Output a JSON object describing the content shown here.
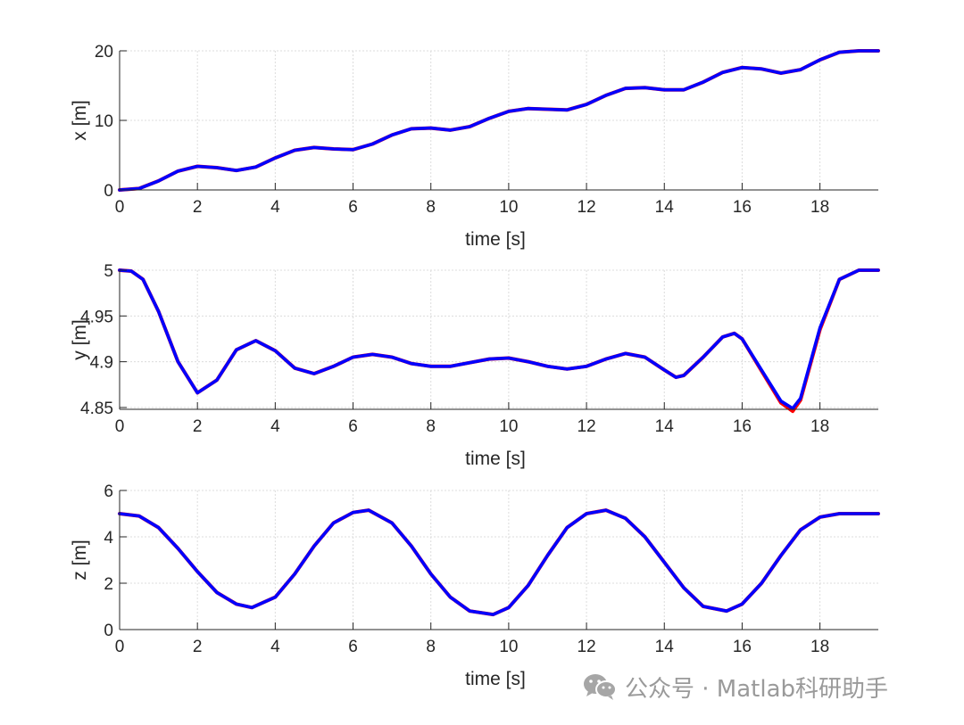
{
  "chart_data": [
    {
      "type": "line",
      "xlabel": "time [s]",
      "ylabel": "x [m]",
      "xlim": [
        0,
        19.5
      ],
      "ylim": [
        0,
        20
      ],
      "xticks": [
        0,
        2,
        4,
        6,
        8,
        10,
        12,
        14,
        16,
        18
      ],
      "yticks": [
        0,
        10,
        20
      ],
      "ytick_labels": [
        "0",
        "10",
        "20"
      ],
      "grid": true,
      "series": [
        {
          "color": "#ff0000",
          "x": [
            0,
            0.5,
            1,
            1.5,
            2,
            2.5,
            3,
            3.5,
            4,
            4.5,
            5,
            5.5,
            6,
            6.5,
            7,
            7.5,
            8,
            8.5,
            9,
            9.5,
            10,
            10.5,
            11,
            11.5,
            12,
            12.5,
            13,
            13.5,
            14,
            14.5,
            15,
            15.5,
            16,
            16.5,
            17,
            17.5,
            18,
            18.5,
            19,
            19.5
          ],
          "y": [
            0,
            0.2,
            1.3,
            2.7,
            3.4,
            3.2,
            2.8,
            3.3,
            4.6,
            5.7,
            6.1,
            5.9,
            5.8,
            6.6,
            7.9,
            8.8,
            8.9,
            8.6,
            9.1,
            10.3,
            11.3,
            11.7,
            11.6,
            11.5,
            12.3,
            13.6,
            14.6,
            14.7,
            14.4,
            14.4,
            15.5,
            16.9,
            17.6,
            17.4,
            16.8,
            17.3,
            18.7,
            19.8,
            20,
            20
          ]
        },
        {
          "color": "#0000ff",
          "x": [
            0,
            0.5,
            1,
            1.5,
            2,
            2.5,
            3,
            3.5,
            4,
            4.5,
            5,
            5.5,
            6,
            6.5,
            7,
            7.5,
            8,
            8.5,
            9,
            9.5,
            10,
            10.5,
            11,
            11.5,
            12,
            12.5,
            13,
            13.5,
            14,
            14.5,
            15,
            15.5,
            16,
            16.5,
            17,
            17.5,
            18,
            18.5,
            19,
            19.5
          ],
          "y": [
            0,
            0.2,
            1.3,
            2.7,
            3.4,
            3.2,
            2.8,
            3.3,
            4.6,
            5.7,
            6.1,
            5.9,
            5.8,
            6.6,
            7.9,
            8.8,
            8.9,
            8.6,
            9.1,
            10.3,
            11.3,
            11.7,
            11.6,
            11.5,
            12.3,
            13.6,
            14.6,
            14.7,
            14.4,
            14.4,
            15.5,
            16.9,
            17.6,
            17.4,
            16.8,
            17.3,
            18.7,
            19.8,
            20,
            20
          ]
        }
      ]
    },
    {
      "type": "line",
      "xlabel": "time [s]",
      "ylabel": "y [m]",
      "xlim": [
        0,
        19.5
      ],
      "ylim": [
        4.848,
        5
      ],
      "xticks": [
        0,
        2,
        4,
        6,
        8,
        10,
        12,
        14,
        16,
        18
      ],
      "yticks": [
        4.85,
        4.9,
        4.95,
        5
      ],
      "ytick_labels": [
        "4.85",
        "4.9",
        "4.95",
        "5"
      ],
      "grid": true,
      "series": [
        {
          "color": "#ff0000",
          "x": [
            0,
            0.3,
            0.6,
            1,
            1.5,
            2,
            2.5,
            3,
            3.5,
            4,
            4.5,
            5,
            5.5,
            6,
            6.5,
            7,
            7.5,
            8,
            8.5,
            9,
            9.5,
            10,
            10.5,
            11,
            11.5,
            12,
            12.5,
            13,
            13.5,
            14,
            14.3,
            14.5,
            15,
            15.5,
            15.8,
            16,
            16.5,
            17,
            17.3,
            17.5,
            18,
            18.5,
            19,
            19.5
          ],
          "y": [
            5,
            4.999,
            4.99,
            4.955,
            4.9,
            4.866,
            4.88,
            4.913,
            4.923,
            4.912,
            4.893,
            4.887,
            4.895,
            4.905,
            4.908,
            4.905,
            4.898,
            4.895,
            4.895,
            4.899,
            4.903,
            4.904,
            4.9,
            4.895,
            4.892,
            4.895,
            4.903,
            4.909,
            4.905,
            4.891,
            4.883,
            4.885,
            4.905,
            4.927,
            4.931,
            4.925,
            4.89,
            4.855,
            4.846,
            4.858,
            4.935,
            4.99,
            5,
            5
          ]
        },
        {
          "color": "#0000ff",
          "x": [
            0,
            0.3,
            0.6,
            1,
            1.5,
            2,
            2.5,
            3,
            3.5,
            4,
            4.5,
            5,
            5.5,
            6,
            6.5,
            7,
            7.5,
            8,
            8.5,
            9,
            9.5,
            10,
            10.5,
            11,
            11.5,
            12,
            12.5,
            13,
            13.5,
            14,
            14.3,
            14.5,
            15,
            15.5,
            15.8,
            16,
            16.5,
            17,
            17.3,
            17.5,
            18,
            18.5,
            19,
            19.5
          ],
          "y": [
            5,
            4.999,
            4.99,
            4.955,
            4.9,
            4.866,
            4.88,
            4.913,
            4.923,
            4.912,
            4.893,
            4.887,
            4.895,
            4.905,
            4.908,
            4.905,
            4.898,
            4.895,
            4.895,
            4.899,
            4.903,
            4.904,
            4.9,
            4.895,
            4.892,
            4.895,
            4.903,
            4.909,
            4.905,
            4.891,
            4.883,
            4.885,
            4.905,
            4.927,
            4.931,
            4.925,
            4.891,
            4.857,
            4.849,
            4.86,
            4.937,
            4.99,
            5,
            5
          ]
        }
      ]
    },
    {
      "type": "line",
      "xlabel": "time [s]",
      "ylabel": "z [m]",
      "xlim": [
        0,
        19.5
      ],
      "ylim": [
        0,
        6
      ],
      "xticks": [
        0,
        2,
        4,
        6,
        8,
        10,
        12,
        14,
        16,
        18
      ],
      "yticks": [
        0,
        2,
        4,
        6
      ],
      "ytick_labels": [
        "0",
        "2",
        "4",
        "6"
      ],
      "grid": true,
      "series": [
        {
          "color": "#ff0000",
          "x": [
            0,
            0.5,
            1,
            1.5,
            2,
            2.5,
            3,
            3.4,
            4,
            4.5,
            5,
            5.5,
            6,
            6.4,
            7,
            7.5,
            8,
            8.5,
            9,
            9.6,
            10,
            10.5,
            11,
            11.5,
            12,
            12.5,
            13,
            13.5,
            14,
            14.5,
            15,
            15.6,
            16,
            16.5,
            17,
            17.5,
            18,
            18.5,
            19,
            19.5
          ],
          "y": [
            5,
            4.9,
            4.4,
            3.5,
            2.5,
            1.6,
            1.1,
            0.95,
            1.4,
            2.4,
            3.6,
            4.6,
            5.05,
            5.15,
            4.6,
            3.6,
            2.4,
            1.4,
            0.8,
            0.65,
            0.95,
            1.9,
            3.2,
            4.4,
            5.0,
            5.15,
            4.8,
            4.0,
            2.9,
            1.8,
            1.0,
            0.8,
            1.1,
            2.0,
            3.2,
            4.3,
            4.85,
            5.0,
            5.0,
            5.0
          ]
        },
        {
          "color": "#0000ff",
          "x": [
            0,
            0.5,
            1,
            1.5,
            2,
            2.5,
            3,
            3.4,
            4,
            4.5,
            5,
            5.5,
            6,
            6.4,
            7,
            7.5,
            8,
            8.5,
            9,
            9.6,
            10,
            10.5,
            11,
            11.5,
            12,
            12.5,
            13,
            13.5,
            14,
            14.5,
            15,
            15.6,
            16,
            16.5,
            17,
            17.5,
            18,
            18.5,
            19,
            19.5
          ],
          "y": [
            5,
            4.9,
            4.4,
            3.5,
            2.5,
            1.6,
            1.1,
            0.95,
            1.4,
            2.4,
            3.6,
            4.6,
            5.05,
            5.15,
            4.6,
            3.6,
            2.4,
            1.4,
            0.8,
            0.65,
            0.95,
            1.9,
            3.2,
            4.4,
            5.0,
            5.15,
            4.8,
            4.0,
            2.9,
            1.8,
            1.0,
            0.8,
            1.1,
            2.0,
            3.2,
            4.3,
            4.85,
            5.0,
            5.0,
            5.0
          ]
        }
      ]
    }
  ],
  "watermark": {
    "text": "公众号 · Matlab科研助手",
    "icon": "wechat-icon"
  }
}
